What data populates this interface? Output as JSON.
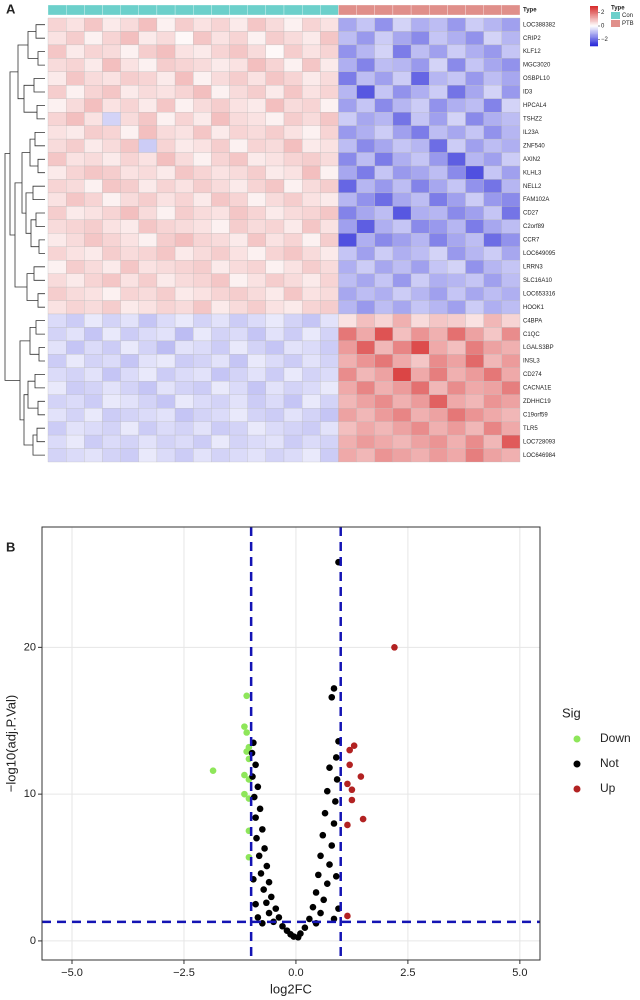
{
  "chart_data": [
    {
      "type": "heatmap",
      "panel": "A",
      "annotation_label": "Type",
      "legend_title": "Type",
      "type_legend": [
        {
          "name": "Con",
          "color": "#6cd0cb"
        },
        {
          "name": "PTB",
          "color": "#e08f8a"
        }
      ],
      "column_types": [
        "Con",
        "Con",
        "Con",
        "Con",
        "Con",
        "Con",
        "Con",
        "Con",
        "Con",
        "Con",
        "Con",
        "Con",
        "Con",
        "Con",
        "Con",
        "Con",
        "PTB",
        "PTB",
        "PTB",
        "PTB",
        "PTB",
        "PTB",
        "PTB",
        "PTB",
        "PTB",
        "PTB"
      ],
      "zlim": [
        -3,
        3
      ],
      "zticks": [
        2,
        0,
        {
          "value": -2,
          "label": "−2"
        }
      ],
      "colors": {
        "low": "#2424d8",
        "mid": "#ffffff",
        "high": "#d62828"
      },
      "rows": [
        "LOC388382",
        "CRIP2",
        "KLF12",
        "MGC3020",
        "OSBPL10",
        "ID3",
        "HPCAL4",
        "TSHZ2",
        "IL23A",
        "ZNF540",
        "AXIN2",
        "KLHL3",
        "NELL2",
        "FAM102A",
        "CD27",
        "C2orf89",
        "CCR7",
        "LOC649095",
        "LRRN3",
        "SLC16A10",
        "LOC653316",
        "HOOK1",
        "C4BPA",
        "C1QC",
        "LGALS3BP",
        "INSL3",
        "CD274",
        "CACNA1E",
        "ZDHHC19",
        "C19orf59",
        "TLR5",
        "LOC728093",
        "LOC646984"
      ],
      "values": [
        [
          0.6,
          0.4,
          0.8,
          0.3,
          0.5,
          0.9,
          0.2,
          0.7,
          0.4,
          0.6,
          0.3,
          0.8,
          0.5,
          0.2,
          0.6,
          0.4,
          -1.2,
          -0.8,
          -1.5,
          -0.6,
          -1.1,
          -0.9,
          -1.4,
          -0.7,
          -1.0,
          -1.3
        ],
        [
          0.4,
          0.7,
          0.2,
          0.6,
          0.9,
          0.3,
          0.5,
          0.1,
          0.8,
          0.4,
          0.6,
          0.2,
          0.7,
          0.5,
          0.3,
          0.8,
          -0.9,
          -1.4,
          -0.7,
          -1.2,
          -1.6,
          -0.8,
          -1.1,
          -1.5,
          -0.6,
          -1.0
        ],
        [
          0.8,
          0.3,
          0.6,
          0.5,
          0.2,
          0.7,
          0.9,
          0.4,
          0.3,
          0.6,
          0.8,
          0.5,
          0.1,
          0.7,
          0.4,
          0.6,
          -1.5,
          -1.0,
          -0.6,
          -1.8,
          -0.9,
          -1.3,
          -0.7,
          -1.1,
          -1.4,
          -0.8
        ],
        [
          0.5,
          0.6,
          0.3,
          0.9,
          0.4,
          0.2,
          0.7,
          0.6,
          0.5,
          0.3,
          0.4,
          0.9,
          0.6,
          0.2,
          0.8,
          0.3,
          -1.1,
          -1.7,
          -0.9,
          -1.0,
          -1.4,
          -0.6,
          -1.6,
          -0.8,
          -1.2,
          -1.5
        ],
        [
          0.3,
          0.8,
          0.5,
          0.4,
          0.7,
          0.6,
          0.3,
          0.9,
          0.2,
          0.5,
          0.7,
          0.4,
          0.8,
          0.6,
          0.3,
          0.5,
          -1.8,
          -0.9,
          -1.3,
          -0.7,
          -2.1,
          -1.0,
          -0.8,
          -1.4,
          -0.9,
          -1.2
        ],
        [
          0.7,
          0.2,
          0.6,
          0.8,
          0.3,
          0.5,
          0.4,
          0.6,
          0.9,
          0.2,
          0.5,
          0.7,
          0.3,
          0.8,
          0.4,
          0.6,
          -1.0,
          -2.3,
          -0.8,
          -1.5,
          -1.1,
          -0.7,
          -1.9,
          -1.2,
          -0.6,
          -1.4
        ],
        [
          0.2,
          0.5,
          0.9,
          0.4,
          0.6,
          0.3,
          0.8,
          0.2,
          0.5,
          0.7,
          0.4,
          0.3,
          0.9,
          0.5,
          0.6,
          0.2,
          -1.3,
          -0.8,
          -1.6,
          -1.0,
          -0.7,
          -1.5,
          -1.1,
          -0.9,
          -1.7,
          -0.6
        ],
        [
          0.6,
          0.9,
          0.4,
          -0.6,
          0.5,
          0.8,
          0.2,
          0.6,
          0.3,
          0.9,
          0.5,
          0.4,
          0.2,
          0.7,
          0.5,
          0.8,
          -0.7,
          -1.2,
          -1.0,
          -1.9,
          -0.8,
          -1.3,
          -0.6,
          -1.6,
          -1.1,
          -0.9
        ],
        [
          0.4,
          0.3,
          0.7,
          0.6,
          0.2,
          0.9,
          0.5,
          0.4,
          0.8,
          0.3,
          0.6,
          0.5,
          0.7,
          0.4,
          0.2,
          0.6,
          -1.4,
          -1.1,
          -0.7,
          -1.3,
          -1.8,
          -0.9,
          -1.2,
          -0.8,
          -1.5,
          -1.0
        ],
        [
          0.5,
          0.7,
          0.3,
          0.5,
          0.8,
          -0.7,
          0.6,
          0.3,
          0.4,
          0.7,
          0.2,
          0.6,
          0.5,
          0.9,
          0.3,
          0.4,
          -0.9,
          -1.6,
          -1.2,
          -0.8,
          -1.0,
          -2.0,
          -0.7,
          -1.3,
          -0.9,
          -1.1
        ],
        [
          0.8,
          0.4,
          0.5,
          0.3,
          0.6,
          0.4,
          0.9,
          0.5,
          0.2,
          0.6,
          0.8,
          0.3,
          0.4,
          0.6,
          0.7,
          0.5,
          -1.6,
          -0.9,
          -1.8,
          -1.1,
          -0.8,
          -1.4,
          -2.2,
          -1.0,
          -1.3,
          -0.7
        ],
        [
          0.3,
          0.6,
          0.8,
          0.7,
          0.4,
          0.5,
          0.3,
          0.8,
          0.6,
          0.4,
          0.5,
          0.7,
          0.3,
          0.4,
          0.9,
          0.2,
          -1.2,
          -1.8,
          -0.8,
          -1.4,
          -1.2,
          -0.9,
          -1.6,
          -2.4,
          -0.8,
          -1.3
        ],
        [
          0.6,
          0.5,
          0.2,
          0.8,
          0.7,
          0.3,
          0.6,
          0.4,
          0.7,
          0.5,
          0.3,
          0.6,
          0.8,
          0.2,
          0.5,
          0.7,
          -2.1,
          -1.0,
          -1.4,
          -0.9,
          -1.7,
          -1.2,
          -0.8,
          -1.5,
          -1.9,
          -1.0
        ],
        [
          0.4,
          0.8,
          0.6,
          0.2,
          0.5,
          0.7,
          0.4,
          0.6,
          0.3,
          0.8,
          0.6,
          0.2,
          0.5,
          0.7,
          0.4,
          0.3,
          -1.0,
          -1.5,
          -2.0,
          -1.2,
          -0.9,
          -1.8,
          -1.3,
          -0.7,
          -1.4,
          -1.6
        ],
        [
          0.7,
          0.3,
          0.4,
          0.6,
          0.9,
          0.5,
          0.2,
          0.7,
          0.5,
          0.4,
          0.8,
          0.6,
          0.3,
          0.5,
          0.6,
          0.8,
          -1.7,
          -1.2,
          -0.9,
          -2.3,
          -1.1,
          -1.0,
          -1.6,
          -1.3,
          -0.8,
          -1.9
        ],
        [
          0.5,
          0.6,
          0.7,
          0.4,
          0.3,
          0.8,
          0.6,
          0.5,
          0.4,
          0.2,
          0.7,
          0.5,
          0.6,
          0.3,
          0.8,
          0.4,
          -1.3,
          -2.2,
          -1.1,
          -0.8,
          -1.6,
          -1.4,
          -1.0,
          -1.8,
          -1.2,
          -0.9
        ],
        [
          0.3,
          0.5,
          0.8,
          0.6,
          0.4,
          0.2,
          0.7,
          0.9,
          0.6,
          0.5,
          0.3,
          0.8,
          0.4,
          0.6,
          0.2,
          0.7,
          -2.4,
          -1.1,
          -1.6,
          -1.3,
          -1.0,
          -1.7,
          -1.2,
          -0.9,
          -2.0,
          -1.5
        ],
        [
          0.6,
          0.4,
          0.3,
          0.7,
          0.5,
          0.6,
          0.8,
          0.3,
          0.5,
          0.7,
          0.4,
          0.2,
          0.6,
          0.8,
          0.5,
          0.3,
          -0.8,
          -1.3,
          -0.7,
          -1.1,
          -0.9,
          -0.6,
          -1.4,
          -1.0,
          -0.7,
          -1.2
        ],
        [
          0.2,
          0.7,
          0.5,
          0.3,
          0.8,
          0.4,
          0.5,
          0.6,
          0.7,
          0.3,
          0.5,
          0.6,
          0.2,
          0.4,
          0.7,
          0.5,
          -1.1,
          -0.7,
          -1.2,
          -0.9,
          -1.3,
          -0.8,
          -0.6,
          -1.5,
          -1.0,
          -0.8
        ],
        [
          0.5,
          0.3,
          0.6,
          0.8,
          0.4,
          0.7,
          0.3,
          0.5,
          0.6,
          0.8,
          0.2,
          0.4,
          0.7,
          0.5,
          0.3,
          0.6,
          -0.9,
          -1.2,
          -0.8,
          -1.4,
          -0.7,
          -1.1,
          -1.0,
          -0.8,
          -1.3,
          -0.9
        ],
        [
          0.7,
          0.5,
          0.4,
          0.2,
          0.6,
          0.5,
          0.7,
          0.3,
          0.4,
          0.6,
          0.7,
          0.5,
          0.3,
          0.8,
          0.4,
          0.5,
          -1.2,
          -0.9,
          -1.1,
          -0.7,
          -1.0,
          -1.3,
          -0.8,
          -1.2,
          -0.9,
          -1.1
        ],
        [
          0.4,
          0.6,
          0.5,
          0.7,
          0.3,
          0.4,
          0.6,
          0.5,
          0.8,
          0.3,
          0.5,
          0.7,
          0.4,
          0.3,
          0.6,
          0.7,
          -1.0,
          -1.4,
          -0.9,
          -1.2,
          -0.8,
          -1.0,
          -1.3,
          -0.7,
          -1.1,
          -0.9
        ],
        [
          -0.5,
          -0.7,
          -0.3,
          -0.6,
          -0.4,
          -0.8,
          -0.5,
          -0.3,
          -0.6,
          -0.4,
          -0.7,
          -0.5,
          -0.3,
          -0.6,
          -0.8,
          -0.4,
          0.4,
          0.9,
          0.6,
          1.1,
          0.5,
          0.8,
          0.7,
          0.4,
          1.0,
          0.6
        ],
        [
          -0.6,
          -0.4,
          -0.8,
          -0.3,
          -0.7,
          -0.5,
          -0.4,
          -0.9,
          -0.3,
          -0.6,
          -0.5,
          -0.8,
          -0.4,
          -0.7,
          -0.3,
          -0.6,
          1.9,
          1.2,
          2.4,
          0.9,
          1.5,
          1.1,
          2.0,
          1.3,
          0.8,
          1.6
        ],
        [
          -0.4,
          -0.8,
          -0.5,
          -0.7,
          -0.3,
          -0.6,
          -0.9,
          -0.4,
          -0.5,
          -0.7,
          -0.3,
          -0.6,
          -0.8,
          -0.4,
          -0.5,
          -0.7,
          1.4,
          2.2,
          1.0,
          1.7,
          2.5,
          1.2,
          0.9,
          1.8,
          1.3,
          1.1
        ],
        [
          -0.7,
          -0.3,
          -0.6,
          -0.5,
          -0.8,
          -0.4,
          -0.3,
          -0.7,
          -0.6,
          -0.4,
          -0.8,
          -0.3,
          -0.5,
          -0.7,
          -0.4,
          -0.6,
          1.1,
          1.5,
          1.9,
          1.2,
          0.8,
          1.6,
          1.3,
          2.1,
          1.0,
          1.4
        ],
        [
          -0.5,
          -0.6,
          -0.4,
          -0.8,
          -0.5,
          -0.3,
          -0.7,
          -0.5,
          -0.4,
          -0.8,
          -0.6,
          -0.4,
          -0.7,
          -0.3,
          -0.6,
          -0.5,
          1.6,
          1.0,
          1.3,
          2.6,
          1.2,
          1.8,
          1.1,
          1.4,
          1.9,
          1.2
        ],
        [
          -0.3,
          -0.7,
          -0.6,
          -0.4,
          -0.6,
          -0.8,
          -0.4,
          -0.6,
          -0.7,
          -0.3,
          -0.5,
          -0.8,
          -0.4,
          -0.6,
          -0.5,
          -0.3,
          1.2,
          1.7,
          1.1,
          1.4,
          2.0,
          1.0,
          1.6,
          1.2,
          1.3,
          1.8
        ],
        [
          -0.6,
          -0.5,
          -0.7,
          -0.3,
          -0.4,
          -0.6,
          -0.8,
          -0.3,
          -0.5,
          -0.6,
          -0.4,
          -0.7,
          -0.5,
          -0.8,
          -0.3,
          -0.6,
          1.0,
          1.3,
          1.6,
          1.1,
          1.4,
          2.2,
          1.2,
          1.0,
          1.5,
          1.3
        ],
        [
          -0.4,
          -0.6,
          -0.3,
          -0.7,
          -0.6,
          -0.5,
          -0.4,
          -0.8,
          -0.6,
          -0.5,
          -0.3,
          -0.6,
          -0.7,
          -0.4,
          -0.6,
          -0.8,
          1.3,
          1.0,
          1.4,
          1.7,
          1.1,
          1.3,
          1.9,
          1.5,
          1.2,
          1.0
        ],
        [
          -0.7,
          -0.4,
          -0.5,
          -0.6,
          -0.3,
          -0.7,
          -0.5,
          -0.6,
          -0.4,
          -0.7,
          -0.6,
          -0.3,
          -0.5,
          -0.6,
          -0.7,
          -0.4,
          0.9,
          1.2,
          1.0,
          1.3,
          1.6,
          1.1,
          1.4,
          1.0,
          1.7,
          1.2
        ],
        [
          -0.5,
          -0.3,
          -0.7,
          -0.5,
          -0.6,
          -0.4,
          -0.6,
          -0.5,
          -0.7,
          -0.3,
          -0.6,
          -0.5,
          -0.4,
          -0.7,
          -0.5,
          -0.6,
          1.1,
          1.4,
          1.2,
          1.0,
          1.3,
          1.5,
          1.1,
          1.6,
          1.0,
          2.3
        ],
        [
          -0.6,
          -0.5,
          -0.4,
          -0.6,
          -0.7,
          -0.3,
          -0.5,
          -0.7,
          -0.4,
          -0.6,
          -0.5,
          -0.4,
          -0.6,
          -0.5,
          -0.3,
          -0.7,
          1.2,
          1.0,
          1.5,
          1.3,
          1.1,
          1.4,
          1.2,
          1.8,
          1.3,
          1.1
        ]
      ]
    },
    {
      "type": "scatter",
      "panel": "B",
      "x_label": "log2FC",
      "y_label": "−log10(adj.P.Val)",
      "legend_title": "Sig",
      "xlim": [
        -5.67,
        5.45
      ],
      "ylim": [
        -1.3,
        28.2
      ],
      "xticks": [
        {
          "value": -5,
          "label": "−5.0"
        },
        {
          "value": -2.5,
          "label": "−2.5"
        },
        {
          "value": 0,
          "label": "0.0"
        },
        {
          "value": 2.5,
          "label": "2.5"
        },
        {
          "value": 5,
          "label": "5.0"
        }
      ],
      "yticks": [
        0,
        10,
        20
      ],
      "grid": true,
      "vlines": [
        -1,
        1
      ],
      "hline": 1.3,
      "threshold_color": "#1414b4",
      "series": [
        {
          "name": "Down",
          "color": "#8ee65a",
          "x": [
            -1.85,
            -1.1,
            -1.15,
            -1.1,
            -1.05,
            -1.1,
            -1.05,
            -1.15,
            -1.05,
            -1.15,
            -1.05,
            -1.05,
            -1.05
          ],
          "values": [
            11.6,
            16.7,
            14.6,
            14.2,
            13.2,
            12.9,
            12.4,
            11.3,
            11.0,
            10.0,
            9.7,
            7.5,
            5.7
          ]
        },
        {
          "name": "Not",
          "color": "#000000",
          "x": [
            -0.95,
            -0.98,
            -0.9,
            -0.97,
            -0.85,
            -0.93,
            -0.8,
            -0.9,
            -0.75,
            -0.88,
            -0.7,
            -0.82,
            -0.65,
            -0.78,
            -0.6,
            -0.72,
            -0.55,
            -0.66,
            -0.45,
            -0.6,
            -0.38,
            -0.5,
            -0.3,
            -0.2,
            -0.12,
            -0.05,
            -0.95,
            -0.9,
            -0.85,
            -0.75,
            0.95,
            0.85,
            0.8,
            0.95,
            0.9,
            0.75,
            0.92,
            0.7,
            0.88,
            0.65,
            0.85,
            0.6,
            0.8,
            0.55,
            0.75,
            0.5,
            0.7,
            0.45,
            0.62,
            0.38,
            0.55,
            0.3,
            0.45,
            0.2,
            0.1,
            0.05,
            0.9,
            0.95,
            0.85
          ],
          "values": [
            13.5,
            12.8,
            12.0,
            11.2,
            10.5,
            9.8,
            9.0,
            8.4,
            7.6,
            7.0,
            6.3,
            5.8,
            5.1,
            4.6,
            4.0,
            3.5,
            3.0,
            2.6,
            2.2,
            1.9,
            1.6,
            1.3,
            1.0,
            0.7,
            0.45,
            0.3,
            4.2,
            2.5,
            1.6,
            1.2,
            25.8,
            17.2,
            16.6,
            13.6,
            12.5,
            11.8,
            11.0,
            10.2,
            9.5,
            8.7,
            8.0,
            7.2,
            6.5,
            5.8,
            5.2,
            4.5,
            3.9,
            3.3,
            2.8,
            2.3,
            1.9,
            1.5,
            1.2,
            0.9,
            0.5,
            0.25,
            4.4,
            2.2,
            1.5
          ]
        },
        {
          "name": "Up",
          "color": "#b22222",
          "x": [
            2.2,
            1.3,
            1.2,
            1.2,
            1.45,
            1.15,
            1.25,
            1.25,
            1.5,
            1.15,
            1.15
          ],
          "values": [
            20.0,
            13.3,
            13.0,
            12.0,
            11.2,
            10.7,
            10.3,
            9.6,
            8.3,
            7.9,
            1.7
          ]
        }
      ]
    }
  ]
}
